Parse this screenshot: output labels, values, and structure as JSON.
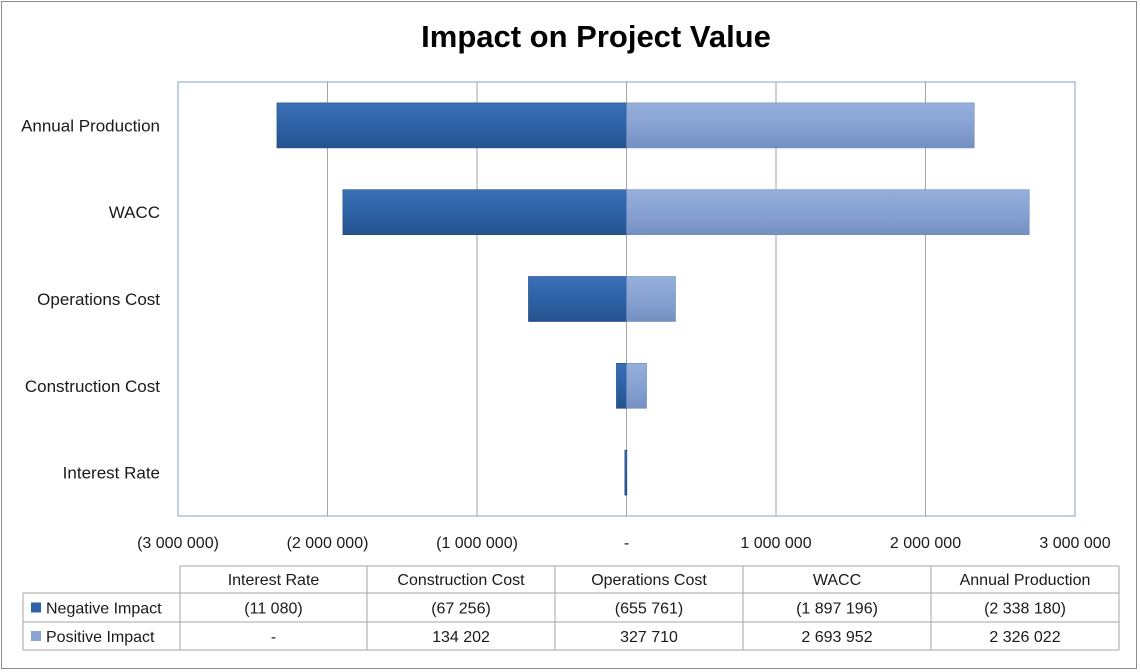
{
  "chart_data": {
    "type": "bar",
    "orientation": "horizontal",
    "title": "Impact on Project Value",
    "categories": [
      "Interest Rate",
      "Construction Cost",
      "Operations Cost",
      "WACC",
      "Annual Production"
    ],
    "series": [
      {
        "name": "Negative Impact",
        "color": "#2e63a8",
        "values": [
          -11080,
          -67256,
          -655761,
          -1897196,
          -2338180
        ]
      },
      {
        "name": "Positive Impact",
        "color": "#8aa5d4",
        "values": [
          0,
          134202,
          327710,
          2693952,
          2326022
        ]
      }
    ],
    "xlim": [
      -3000000,
      3000000
    ],
    "x_ticks": [
      -3000000,
      -2000000,
      -1000000,
      0,
      1000000,
      2000000,
      3000000
    ],
    "x_tick_labels": [
      "(3 000 000)",
      "(2 000 000)",
      "(1 000 000)",
      "-",
      "1 000 000",
      "2 000 000",
      "3 000 000"
    ],
    "grid": true,
    "data_table": {
      "headers": [
        "Interest Rate",
        "Construction Cost",
        "Operations Cost",
        "WACC",
        "Annual Production"
      ],
      "rows": [
        {
          "label": "Negative Impact",
          "values": [
            "(11 080)",
            "(67 256)",
            "(655 761)",
            "(1 897 196)",
            "(2 338 180)"
          ]
        },
        {
          "label": "Positive Impact",
          "values": [
            "-",
            "134 202",
            "327 710",
            "2 693 952",
            "2 326 022"
          ]
        }
      ]
    }
  }
}
